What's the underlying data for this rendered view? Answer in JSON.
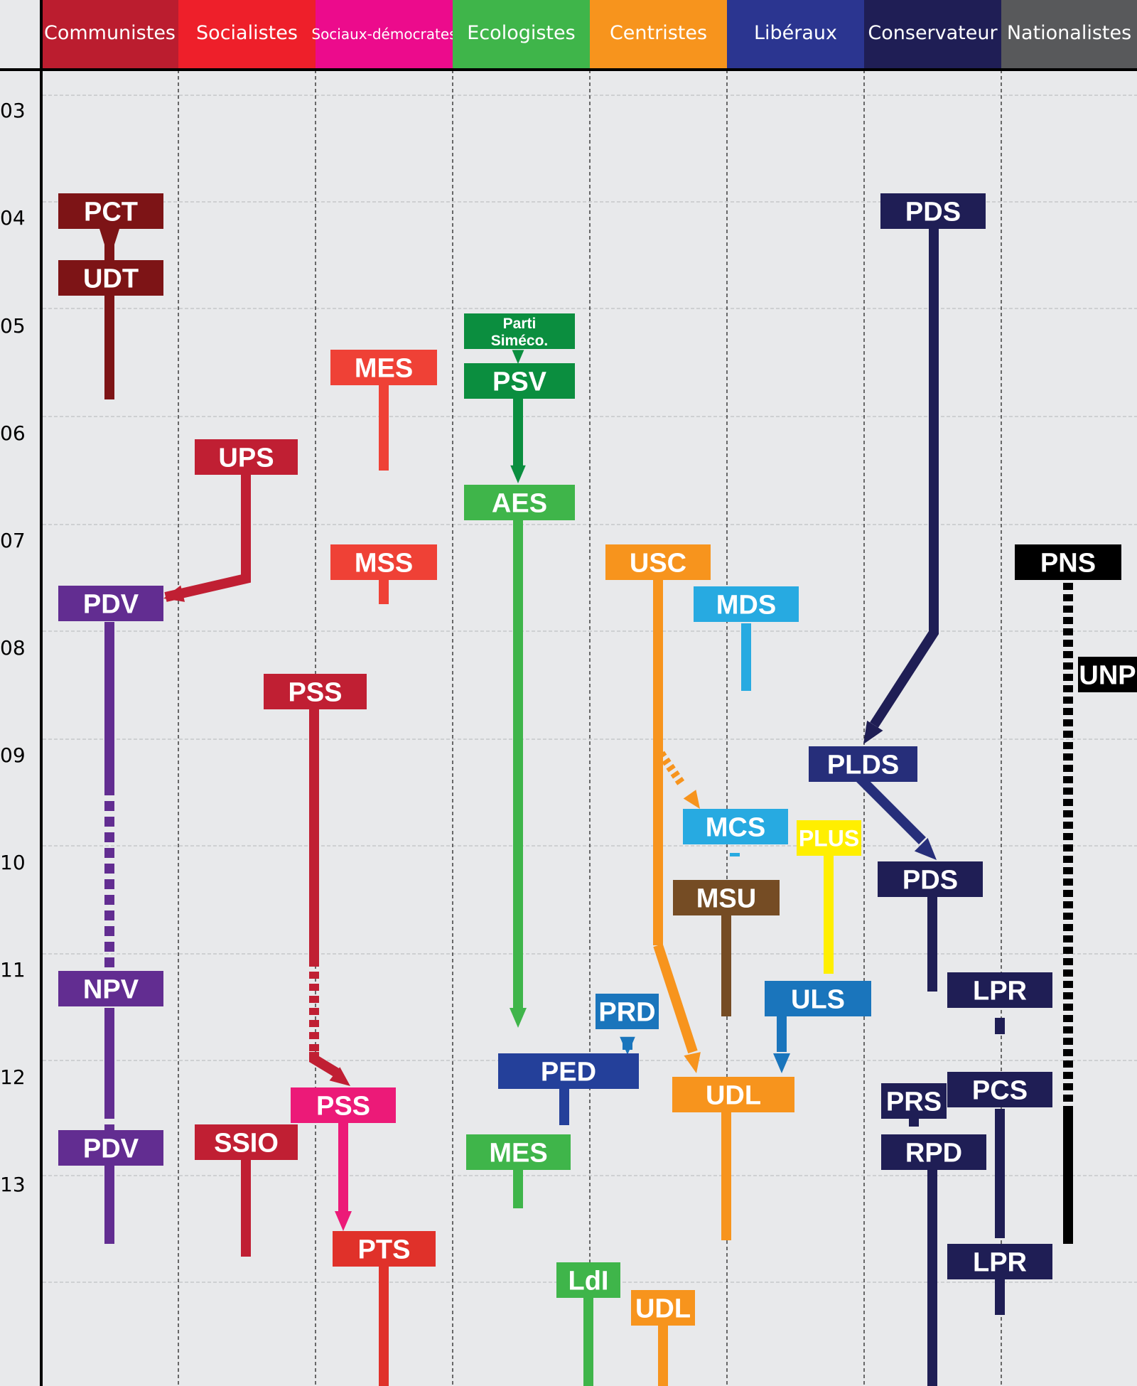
{
  "columns": [
    {
      "label": "Communistes",
      "color": "#bb1d2f"
    },
    {
      "label": "Socialistes",
      "color": "#ee1f2a"
    },
    {
      "label": "Sociaux-démocrates",
      "color": "#ec0b8c"
    },
    {
      "label": "Ecologistes",
      "color": "#3fb54a"
    },
    {
      "label": "Centristes",
      "color": "#f7941d"
    },
    {
      "label": "Libéraux",
      "color": "#2b3590"
    },
    {
      "label": "Conservateur",
      "color": "#1f1e55"
    },
    {
      "label": "Nationalistes",
      "color": "#58595b"
    }
  ],
  "years": [
    "03",
    "04",
    "05",
    "06",
    "07",
    "08",
    "09",
    "10",
    "11",
    "12",
    "13"
  ],
  "parties": [
    {
      "label": "PCT",
      "color": "#7d1416"
    },
    {
      "label": "UDT",
      "color": "#7d1416"
    },
    {
      "label": "PDV",
      "color": "#622d91"
    },
    {
      "label": "NPV",
      "color": "#622d91"
    },
    {
      "label": "PDV",
      "color": "#622d91"
    },
    {
      "label": "UPS",
      "color": "#c01f33"
    },
    {
      "label": "PSS",
      "color": "#c01f33"
    },
    {
      "label": "SSIO",
      "color": "#c01f33"
    },
    {
      "label": "MES",
      "color": "#ef4136"
    },
    {
      "label": "MSS",
      "color": "#ef4136"
    },
    {
      "label": "PSS",
      "color": "#ec1a78"
    },
    {
      "label": "PTS",
      "color": "#e0312a"
    },
    {
      "label": "Parti Siméco.",
      "color": "#0b8e3f"
    },
    {
      "label": "PSV",
      "color": "#0b8e3f"
    },
    {
      "label": "AES",
      "color": "#3fb54a"
    },
    {
      "label": "MES",
      "color": "#3fb54a"
    },
    {
      "label": "PED",
      "color": "#24409a"
    },
    {
      "label": "LdI",
      "color": "#3fb54a"
    },
    {
      "label": "PRD",
      "color": "#1a75bc"
    },
    {
      "label": "USC",
      "color": "#f7941d"
    },
    {
      "label": "UDL",
      "color": "#f7941d"
    },
    {
      "label": "UDL",
      "color": "#f7941d"
    },
    {
      "label": "MDS",
      "color": "#27aae1"
    },
    {
      "label": "MCS",
      "color": "#27aae1"
    },
    {
      "label": "MSU",
      "color": "#754c24"
    },
    {
      "label": "PLUS",
      "color": "#ffef00"
    },
    {
      "label": "ULS",
      "color": "#1a75bc"
    },
    {
      "label": "PLDS",
      "color": "#262e7a"
    },
    {
      "label": "PDS",
      "color": "#1f1e55"
    },
    {
      "label": "PDS",
      "color": "#1f1e55"
    },
    {
      "label": "LPR",
      "color": "#1f1e55"
    },
    {
      "label": "PCS",
      "color": "#1f1e55"
    },
    {
      "label": "LPR",
      "color": "#1f1e55"
    },
    {
      "label": "PRS",
      "color": "#1f1e55"
    },
    {
      "label": "RPD",
      "color": "#1f1e55"
    },
    {
      "label": "PNS",
      "color": "#000000"
    },
    {
      "label": "UNP",
      "color": "#000000"
    }
  ]
}
